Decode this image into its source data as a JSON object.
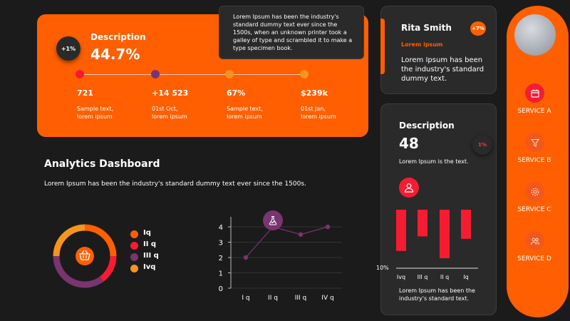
{
  "hero": {
    "badge": "+1%",
    "title": "Description",
    "value": "44.7%",
    "items": [
      {
        "value": "721",
        "line1": "Sample text,",
        "line2": "lorem ipsum",
        "color": "#f51c32"
      },
      {
        "value": "+14 523",
        "line1": "01st Oct,",
        "line2": "lorem ipsum",
        "color": "#7a3470"
      },
      {
        "value": "67%",
        "line1": "Sample text,",
        "line2": "lorem ipsum",
        "color": "#f7941d"
      },
      {
        "value": "$239k",
        "line1": "01st Jan,",
        "line2": "lorem ipsum",
        "color": "#f7941d"
      }
    ]
  },
  "tooltip": {
    "text": "Lorem Ipsum has been the industry's standard dummy text ever since the 1500s, when an unknown printer took a galley of type and scrambled it to make a type specimen book."
  },
  "profile": {
    "name": "Rita Smith",
    "badge": "+7%",
    "subtitle": "Lorem ipsum",
    "text": "Lorem Ipsum has been the industry's standard dummy text."
  },
  "stats": {
    "title": "Description",
    "value": "48",
    "badge": "1%",
    "text": "Lorem Ipsum is the text.",
    "icon": "users-icon",
    "axis_label": "10%",
    "footer": "Lorem Ipsum has been the industry's standard text."
  },
  "sidebar": {
    "avatar": "avatar",
    "services": [
      {
        "label": "SERVICE A",
        "icon": "calendar-icon",
        "active": true
      },
      {
        "label": "SERVICE B",
        "icon": "filter-icon",
        "active": false
      },
      {
        "label": "SERVICE C",
        "icon": "gear-icon",
        "active": false
      },
      {
        "label": "SERVICE D",
        "icon": "users-icon",
        "active": false
      }
    ]
  },
  "analytics": {
    "title": "Analytics Dashboard",
    "description": "Lorem Ipsum has been the industry's standard dummy text ever since the 1500s."
  },
  "legend": [
    {
      "label": "Iq",
      "color": "#ff5f00"
    },
    {
      "label": "II q",
      "color": "#f51c32"
    },
    {
      "label": "III q",
      "color": "#7a3470"
    },
    {
      "label": "Ivq",
      "color": "#f7941d"
    }
  ],
  "colors": {
    "orange": "#ff5f00",
    "red": "#f51c32",
    "purple": "#7a3470",
    "amber": "#f7941d",
    "card": "#2a2a2a",
    "background": "#1b1b1b"
  },
  "chart_data": [
    {
      "type": "pie",
      "variant": "donut",
      "center_icon": "basket-icon",
      "categories": [
        "Iq",
        "II q",
        "III q",
        "Ivq"
      ],
      "values": [
        25,
        15,
        35,
        25
      ],
      "colors": [
        "#ff5f00",
        "#f51c32",
        "#7a3470",
        "#f7941d"
      ]
    },
    {
      "type": "line",
      "categories": [
        "I q",
        "II q",
        "III q",
        "IV q"
      ],
      "values": [
        2,
        4,
        3.5,
        4
      ],
      "ylim": [
        0,
        4
      ],
      "yticks": [
        0,
        1,
        2,
        3,
        4
      ],
      "grid": true,
      "highlight_icon": "flask-icon",
      "color": "#7a3470"
    },
    {
      "type": "bar",
      "orientation": "down",
      "categories": [
        "Ivq",
        "III q",
        "II q",
        "Iq"
      ],
      "values": [
        -0.85,
        -0.55,
        -1.0,
        -0.6
      ],
      "color": "#f51c32"
    }
  ]
}
